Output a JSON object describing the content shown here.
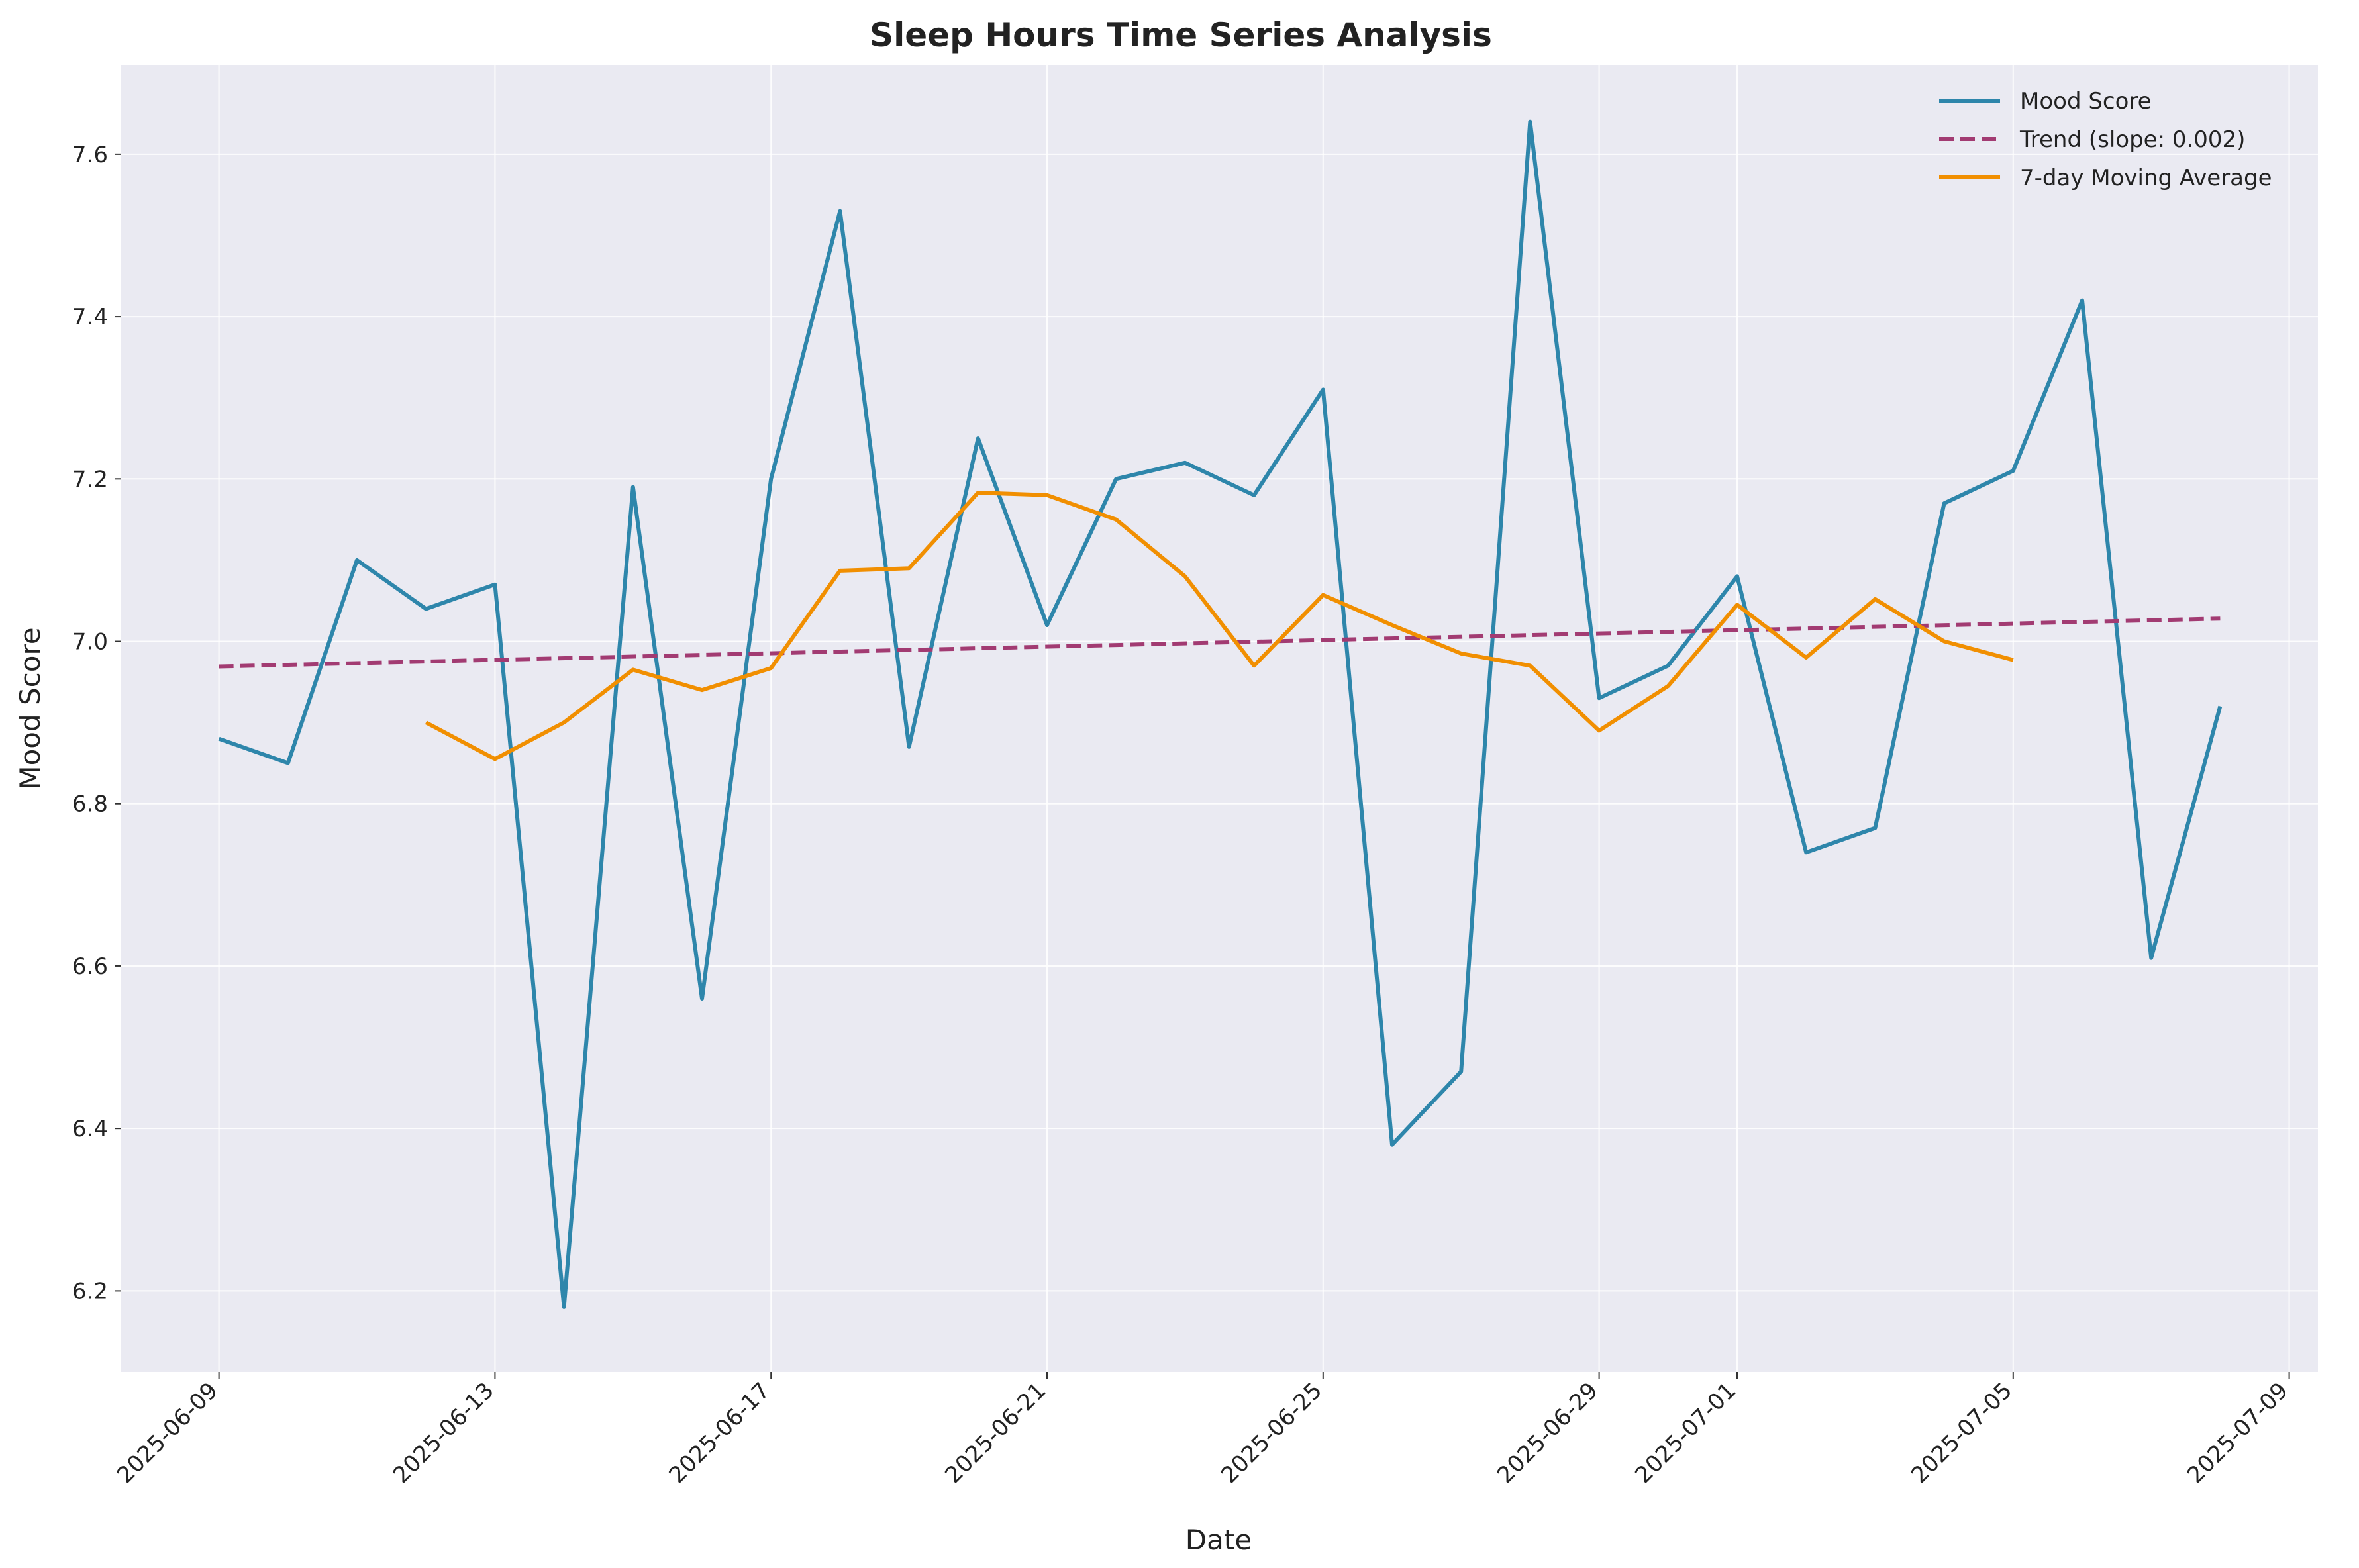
{
  "chart_data": {
    "type": "line",
    "title": "Sleep Hours Time Series Analysis",
    "xlabel": "Date",
    "ylabel": "Mood Score",
    "x_type": "date",
    "xlim": [
      "2025-06-07 14:00",
      "2025-07-09 10:00"
    ],
    "ylim": [
      6.1,
      7.71
    ],
    "xticks": [
      "2025-06-09",
      "2025-06-13",
      "2025-06-17",
      "2025-06-21",
      "2025-06-25",
      "2025-06-29",
      "2025-07-01",
      "2025-07-05",
      "2025-07-09"
    ],
    "yticks": [
      6.2,
      6.4,
      6.6,
      6.8,
      7.0,
      7.2,
      7.4,
      7.6
    ],
    "grid": true,
    "legend_position": "top-right",
    "background": "#eaeaf2",
    "series": [
      {
        "name": "Mood Score",
        "color": "#2e86ab",
        "style": "solid",
        "x": [
          "2025-06-09",
          "2025-06-10",
          "2025-06-11",
          "2025-06-12",
          "2025-06-13",
          "2025-06-14",
          "2025-06-15",
          "2025-06-16",
          "2025-06-17",
          "2025-06-18",
          "2025-06-19",
          "2025-06-20",
          "2025-06-21",
          "2025-06-22",
          "2025-06-23",
          "2025-06-24",
          "2025-06-25",
          "2025-06-26",
          "2025-06-27",
          "2025-06-28",
          "2025-06-29",
          "2025-06-30",
          "2025-07-01",
          "2025-07-02",
          "2025-07-03",
          "2025-07-04",
          "2025-07-05",
          "2025-07-06",
          "2025-07-07",
          "2025-07-08"
        ],
        "values": [
          6.88,
          6.85,
          7.1,
          7.04,
          7.07,
          6.18,
          7.19,
          6.56,
          7.2,
          7.53,
          6.87,
          7.25,
          7.02,
          7.2,
          7.22,
          7.18,
          7.31,
          6.38,
          6.47,
          7.64,
          6.93,
          6.97,
          7.08,
          6.74,
          6.77,
          7.17,
          7.21,
          7.42,
          6.61,
          6.92
        ]
      },
      {
        "name": "Trend (slope: 0.002)",
        "color": "#a23b72",
        "style": "dashed",
        "x": [
          "2025-06-09",
          "2025-07-08"
        ],
        "values": [
          6.969,
          7.028
        ]
      },
      {
        "name": "7-day Moving Average",
        "color": "#f18f01",
        "style": "solid",
        "x": [
          "2025-06-12",
          "2025-06-13",
          "2025-06-14",
          "2025-06-15",
          "2025-06-16",
          "2025-06-17",
          "2025-06-18",
          "2025-06-19",
          "2025-06-20",
          "2025-06-21",
          "2025-06-22",
          "2025-06-23",
          "2025-06-24",
          "2025-06-25",
          "2025-06-26",
          "2025-06-27",
          "2025-06-28",
          "2025-06-29",
          "2025-06-30",
          "2025-07-01",
          "2025-07-02",
          "2025-07-03",
          "2025-07-04",
          "2025-07-05"
        ],
        "values": [
          6.9,
          6.855,
          6.9,
          6.965,
          6.94,
          6.967,
          7.087,
          7.09,
          7.183,
          7.18,
          7.15,
          7.08,
          6.97,
          7.057,
          7.02,
          6.985,
          6.97,
          6.89,
          6.945,
          7.045,
          6.98,
          7.052,
          7.0,
          6.977
        ]
      }
    ]
  }
}
